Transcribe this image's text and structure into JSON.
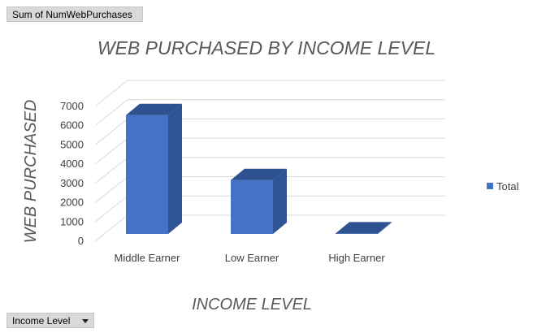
{
  "pivot": {
    "value_field": "Sum of NumWebPurchases",
    "axis_field": "Income Level"
  },
  "chart_data": {
    "type": "bar",
    "title": "WEB PURCHASED BY INCOME LEVEL",
    "xlabel": "INCOME LEVEL",
    "ylabel": "WEB PURCHASED",
    "categories": [
      "Middle Earner",
      "Low Earner",
      "High Earner"
    ],
    "series": [
      {
        "name": "Total",
        "values": [
          6400,
          2900,
          30
        ]
      }
    ],
    "ylim": [
      0,
      7000
    ],
    "yticks": [
      "0",
      "1000",
      "2000",
      "3000",
      "4000",
      "5000",
      "6000",
      "7000"
    ],
    "legend_position": "right",
    "grid": true,
    "three_d": true,
    "colors": {
      "bar_front": "#4472C4",
      "bar_side": "#2F5496",
      "bar_top": "#2E5290",
      "grid": "#d9d9d9"
    }
  }
}
